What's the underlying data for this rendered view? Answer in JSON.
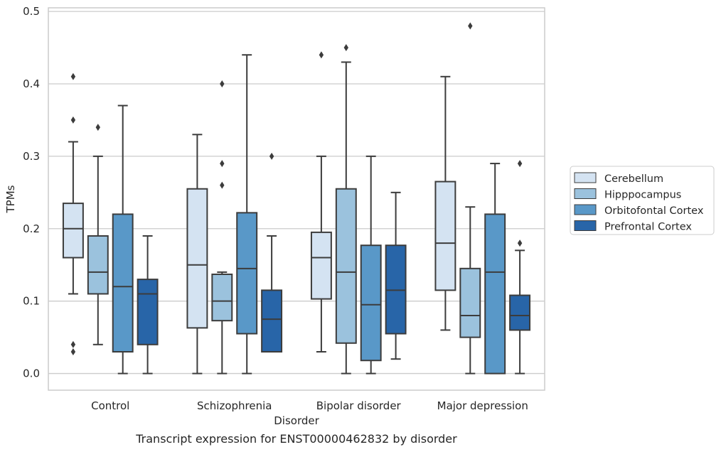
{
  "chart_data": {
    "type": "box",
    "title": "",
    "caption": "Transcript expression for ENST00000462832 by disorder",
    "xlabel": "Disorder",
    "ylabel": "TPMs",
    "ylim": [
      -0.023,
      0.505
    ],
    "yticks": [
      "0.0",
      "0.1",
      "0.2",
      "0.3",
      "0.4",
      "0.5"
    ],
    "grid": "horizontal",
    "legend_position": "right",
    "categories": [
      "Control",
      "Schizophrenia",
      "Bipolar disorder",
      "Major depression"
    ],
    "series": [
      {
        "name": "Cerebellum",
        "color": "#d4e3f2",
        "boxes": [
          {
            "whisker_low": 0.11,
            "q1": 0.16,
            "median": 0.2,
            "q3": 0.235,
            "whisker_high": 0.32,
            "outliers": [
              0.41,
              0.35,
              0.04,
              0.03
            ]
          },
          {
            "whisker_low": 0.0,
            "q1": 0.063,
            "median": 0.15,
            "q3": 0.255,
            "whisker_high": 0.33,
            "outliers": []
          },
          {
            "whisker_low": 0.03,
            "q1": 0.103,
            "median": 0.16,
            "q3": 0.195,
            "whisker_high": 0.3,
            "outliers": [
              0.44
            ]
          },
          {
            "whisker_low": 0.06,
            "q1": 0.115,
            "median": 0.18,
            "q3": 0.265,
            "whisker_high": 0.41,
            "outliers": []
          }
        ]
      },
      {
        "name": "Hipppocampus",
        "color": "#9bc2dd",
        "boxes": [
          {
            "whisker_low": 0.04,
            "q1": 0.11,
            "median": 0.14,
            "q3": 0.19,
            "whisker_high": 0.3,
            "outliers": [
              0.34
            ]
          },
          {
            "whisker_low": 0.0,
            "q1": 0.073,
            "median": 0.1,
            "q3": 0.137,
            "whisker_high": 0.14,
            "outliers": [
              0.4,
              0.29,
              0.26
            ]
          },
          {
            "whisker_low": 0.0,
            "q1": 0.042,
            "median": 0.14,
            "q3": 0.255,
            "whisker_high": 0.43,
            "outliers": [
              0.45
            ]
          },
          {
            "whisker_low": 0.0,
            "q1": 0.05,
            "median": 0.08,
            "q3": 0.145,
            "whisker_high": 0.23,
            "outliers": [
              0.48
            ]
          }
        ]
      },
      {
        "name": "Orbitofontal Cortex",
        "color": "#5998c8",
        "boxes": [
          {
            "whisker_low": 0.0,
            "q1": 0.03,
            "median": 0.12,
            "q3": 0.22,
            "whisker_high": 0.37,
            "outliers": []
          },
          {
            "whisker_low": 0.0,
            "q1": 0.055,
            "median": 0.145,
            "q3": 0.222,
            "whisker_high": 0.44,
            "outliers": []
          },
          {
            "whisker_low": 0.0,
            "q1": 0.018,
            "median": 0.095,
            "q3": 0.177,
            "whisker_high": 0.3,
            "outliers": []
          },
          {
            "whisker_low": 0.0,
            "q1": 0.0,
            "median": 0.14,
            "q3": 0.22,
            "whisker_high": 0.29,
            "outliers": []
          }
        ]
      },
      {
        "name": "Prefrontal Cortex",
        "color": "#2865a8",
        "boxes": [
          {
            "whisker_low": 0.0,
            "q1": 0.04,
            "median": 0.11,
            "q3": 0.13,
            "whisker_high": 0.19,
            "outliers": []
          },
          {
            "whisker_low": 0.03,
            "q1": 0.03,
            "median": 0.075,
            "q3": 0.115,
            "whisker_high": 0.19,
            "outliers": [
              0.3
            ]
          },
          {
            "whisker_low": 0.02,
            "q1": 0.055,
            "median": 0.115,
            "q3": 0.177,
            "whisker_high": 0.25,
            "outliers": []
          },
          {
            "whisker_low": 0.0,
            "q1": 0.06,
            "median": 0.08,
            "q3": 0.108,
            "whisker_high": 0.17,
            "outliers": [
              0.29,
              0.18
            ]
          }
        ]
      }
    ]
  }
}
